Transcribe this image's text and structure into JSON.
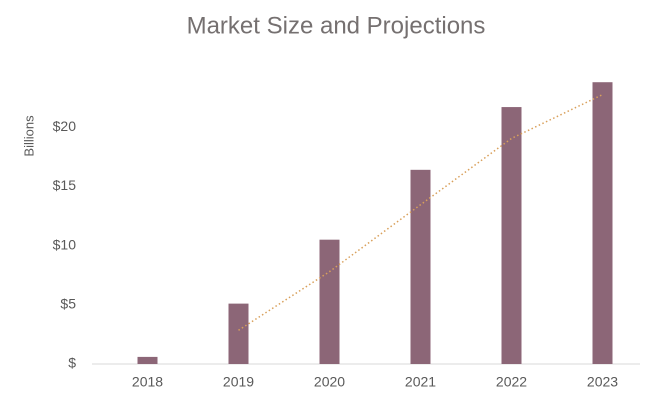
{
  "chart_data": {
    "type": "bar",
    "title": "Market Size and Projections",
    "y_label": "Billions",
    "categories": [
      "2018",
      "2019",
      "2020",
      "2021",
      "2022",
      "2023"
    ],
    "values": [
      0.6,
      5.1,
      10.5,
      16.4,
      21.7,
      23.8
    ],
    "color": "#8c6677",
    "trendline": {
      "values": [
        null,
        2.85,
        7.8,
        13.45,
        19.05,
        22.75
      ],
      "color": "#d9a05b",
      "style": "dotted"
    },
    "ylim": [
      0,
      25
    ],
    "yticks": [
      {
        "value": 0,
        "label": "$"
      },
      {
        "value": 5,
        "label": "$5"
      },
      {
        "value": 10,
        "label": "$10"
      },
      {
        "value": 15,
        "label": "$15"
      },
      {
        "value": 20,
        "label": "$20"
      }
    ],
    "grid": false
  }
}
